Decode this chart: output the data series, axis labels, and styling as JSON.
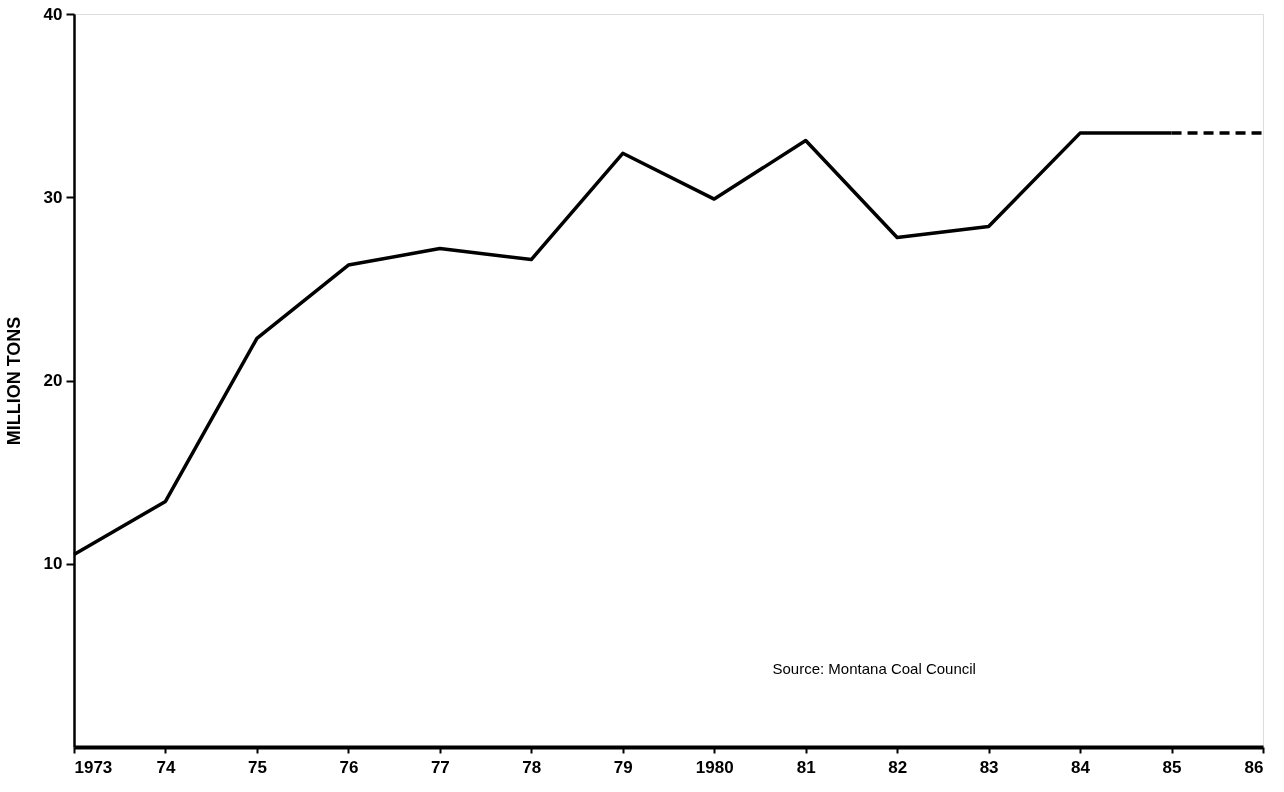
{
  "chart_data": {
    "type": "line",
    "ylabel": "MILLION TONS",
    "xlim": [
      1973,
      1986
    ],
    "ylim": [
      0,
      40
    ],
    "xticks": [
      {
        "value": 1973,
        "label": "1973"
      },
      {
        "value": 1974,
        "label": "74"
      },
      {
        "value": 1975,
        "label": "75"
      },
      {
        "value": 1976,
        "label": "76"
      },
      {
        "value": 1977,
        "label": "77"
      },
      {
        "value": 1978,
        "label": "78"
      },
      {
        "value": 1979,
        "label": "79"
      },
      {
        "value": 1980,
        "label": "1980"
      },
      {
        "value": 1981,
        "label": "81"
      },
      {
        "value": 1982,
        "label": "82"
      },
      {
        "value": 1983,
        "label": "83"
      },
      {
        "value": 1984,
        "label": "84"
      },
      {
        "value": 1985,
        "label": "85"
      },
      {
        "value": 1986,
        "label": "86"
      }
    ],
    "yticks": [
      10,
      20,
      30,
      40
    ],
    "grid": false,
    "marker": "none",
    "series": [
      {
        "color": "#000000",
        "line_style": "solid",
        "x": [
          1973,
          1974,
          1975,
          1976,
          1977,
          1978,
          1979,
          1980,
          1981,
          1982,
          1983,
          1984,
          1985
        ],
        "values": [
          10.5,
          13.4,
          22.3,
          26.3,
          27.2,
          26.6,
          32.4,
          29.9,
          33.1,
          27.8,
          28.4,
          33.5,
          33.5
        ]
      },
      {
        "color": "#000000",
        "line_style": "dashed",
        "x": [
          1985,
          1986
        ],
        "values": [
          33.5,
          33.5
        ]
      }
    ],
    "annotations": [
      "Source: Montana Coal Council"
    ]
  }
}
